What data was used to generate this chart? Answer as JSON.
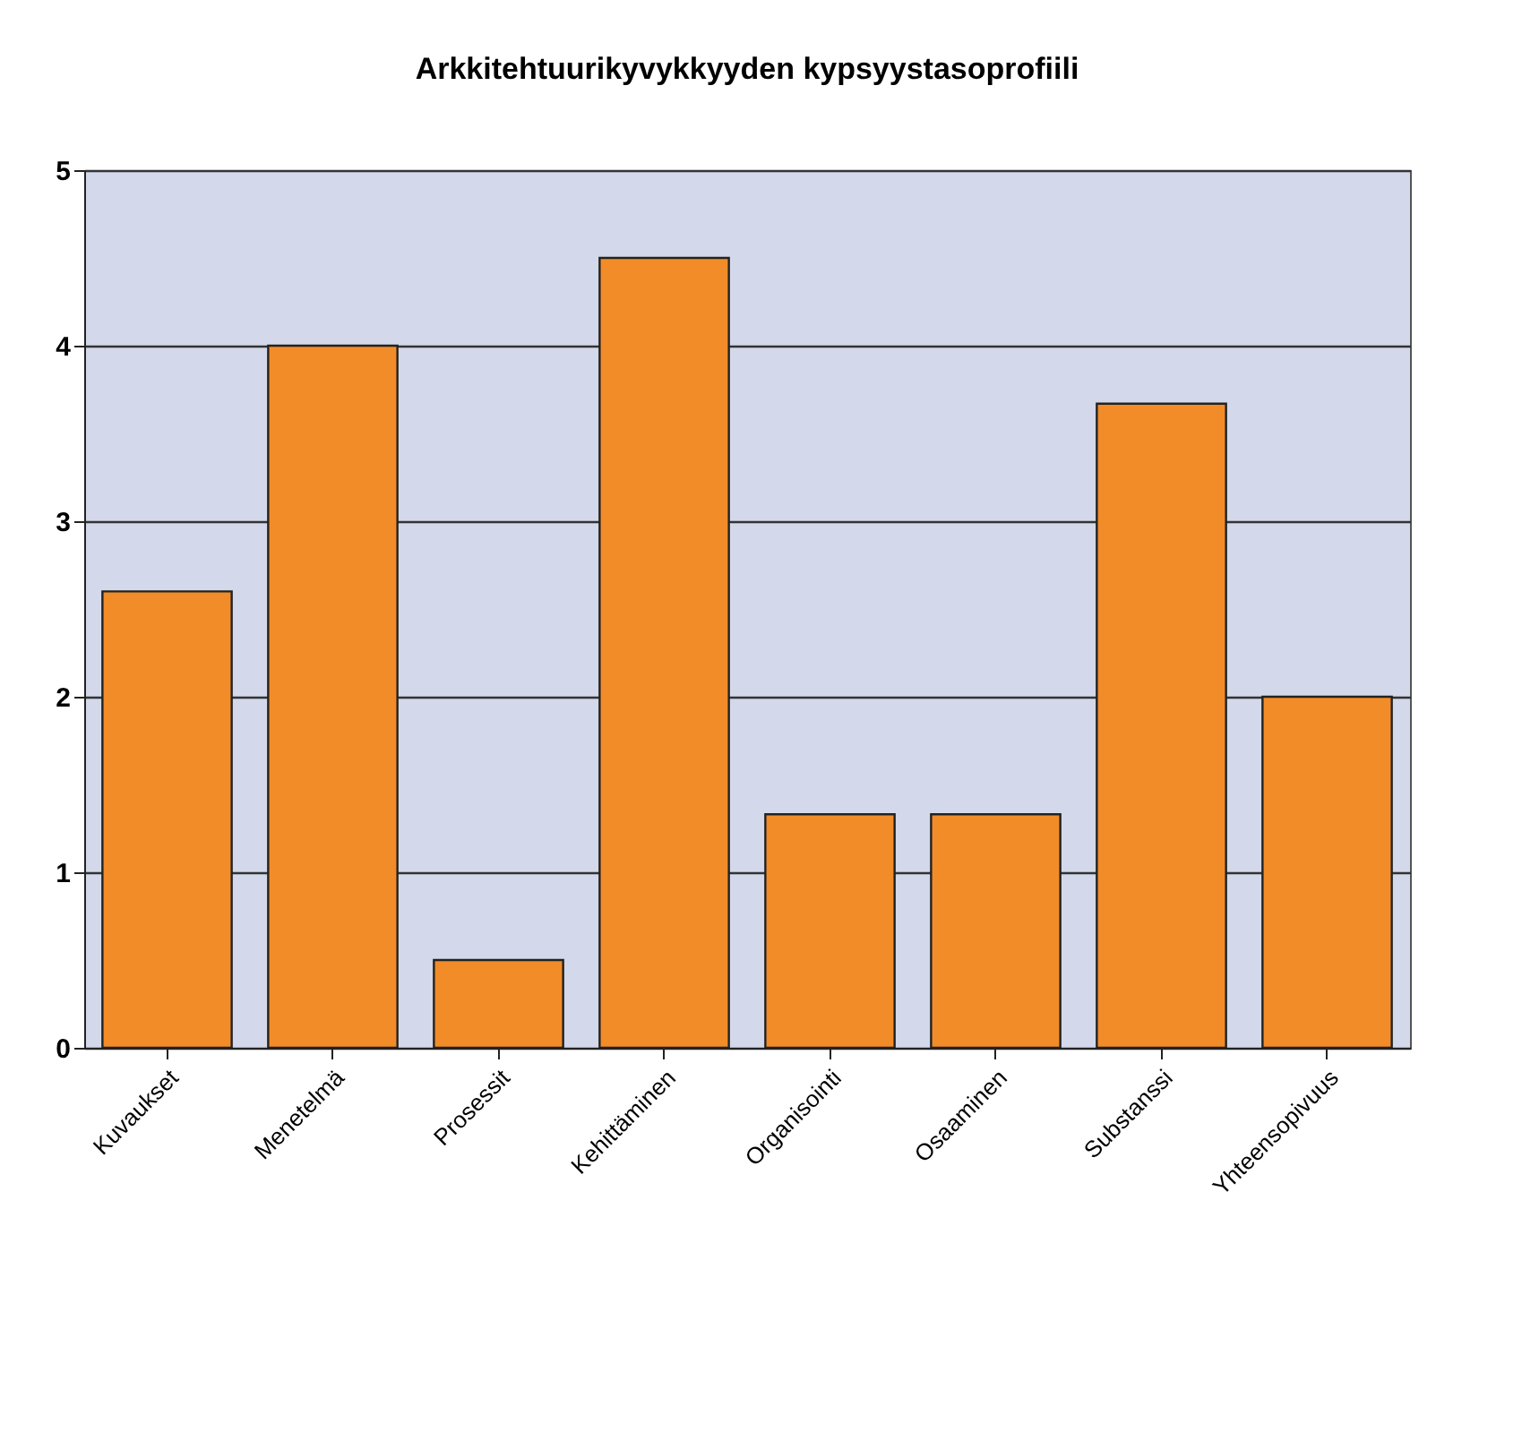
{
  "chart_data": {
    "type": "bar",
    "title": "Arkkitehtuurikyvykkyyden kypsyystasoprofiili",
    "categories": [
      "Kuvaukset",
      "Menetelmä",
      "Prosessit",
      "Kehittäminen",
      "Organisointi",
      "Osaaminen",
      "Substanssi",
      "Yhteensopivuus"
    ],
    "values": [
      2.6,
      4,
      0.5,
      4.5,
      1.33,
      1.33,
      3.67,
      2
    ],
    "color": "#f28c28",
    "ylim": [
      0,
      5
    ],
    "yticks": [
      0,
      1,
      2,
      3,
      4,
      5
    ],
    "grid": "y"
  }
}
